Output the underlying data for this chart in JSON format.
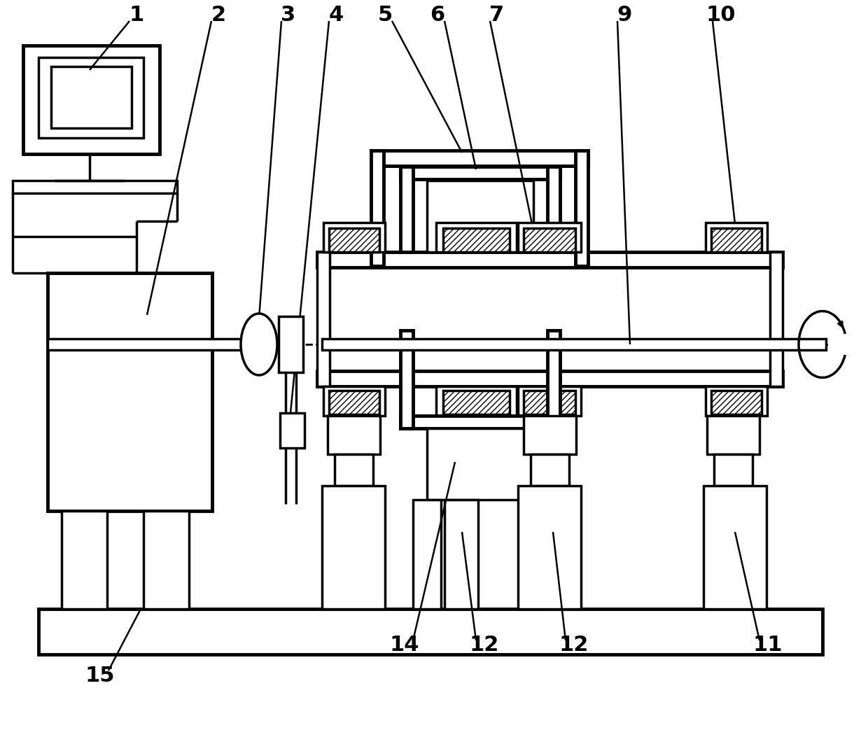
{
  "bg_color": "#ffffff",
  "lw": 2.5,
  "tlw": 3.5,
  "fs": 22,
  "figsize": [
    12.4,
    10.53
  ],
  "dpi": 100
}
